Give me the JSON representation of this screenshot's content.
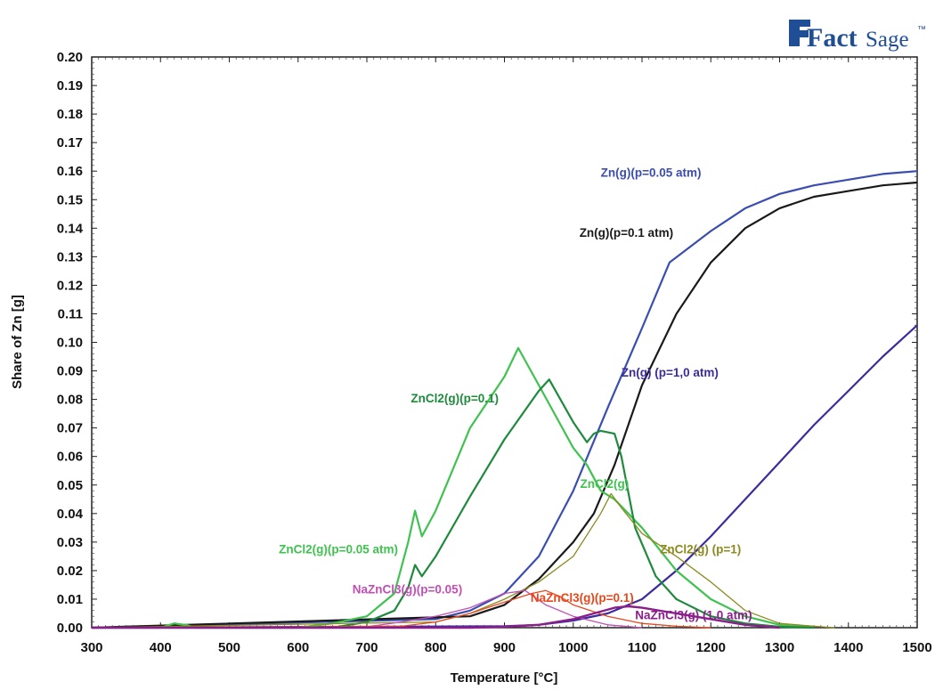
{
  "logo": {
    "brand": "FactSage",
    "bold_part": "Fact",
    "light_part": "Sage",
    "mark": "™",
    "color": "#1f4e96"
  },
  "chart_data": {
    "type": "line",
    "title": "",
    "xlabel": "Temperature [°C]",
    "ylabel": "Share of Zn [g]",
    "xlim": [
      300,
      1500
    ],
    "ylim": [
      0,
      0.2
    ],
    "xticks": [
      "300",
      "400",
      "500",
      "600",
      "700",
      "800",
      "900",
      "1000",
      "1100",
      "1200",
      "1300",
      "1400",
      "1500"
    ],
    "yticks": [
      "0.00",
      "0.01",
      "0.02",
      "0.03",
      "0.04",
      "0.05",
      "0.06",
      "0.07",
      "0.08",
      "0.09",
      "0.10",
      "0.11",
      "0.12",
      "0.13",
      "0.14",
      "0.15",
      "0.16",
      "0.17",
      "0.18",
      "0.19",
      "0.20"
    ],
    "grid": false,
    "series": [
      {
        "name": "Zn(g)(p=0.05 atm)",
        "color": "#3a4db0",
        "x": [
          300,
          800,
          850,
          900,
          950,
          1000,
          1050,
          1100,
          1140,
          1200,
          1250,
          1300,
          1350,
          1400,
          1450,
          1500
        ],
        "y": [
          0,
          0.003,
          0.006,
          0.012,
          0.025,
          0.048,
          0.077,
          0.105,
          0.128,
          0.139,
          0.147,
          0.152,
          0.155,
          0.157,
          0.159,
          0.16
        ]
      },
      {
        "name": "Zn(g)(p=0.1 atm)",
        "color": "#1a1a1a",
        "x": [
          300,
          850,
          900,
          950,
          1000,
          1030,
          1060,
          1100,
          1150,
          1200,
          1250,
          1300,
          1350,
          1400,
          1450,
          1500
        ],
        "y": [
          0,
          0.004,
          0.008,
          0.017,
          0.03,
          0.04,
          0.057,
          0.085,
          0.11,
          0.128,
          0.14,
          0.147,
          0.151,
          0.153,
          0.155,
          0.156
        ]
      },
      {
        "name": "Zn(g) (p=1,0 atm)",
        "color": "#3b2c9e",
        "x": [
          300,
          900,
          950,
          1000,
          1050,
          1100,
          1150,
          1200,
          1250,
          1300,
          1350,
          1400,
          1450,
          1500
        ],
        "y": [
          0,
          0.0005,
          0.001,
          0.0025,
          0.005,
          0.01,
          0.02,
          0.032,
          0.045,
          0.058,
          0.071,
          0.083,
          0.095,
          0.106
        ]
      },
      {
        "name": "ZnCl2(g)(p=0.05 atm)",
        "color": "#3fc24f",
        "x": [
          300,
          400,
          420,
          440,
          450,
          600,
          650,
          700,
          720,
          740,
          760,
          770,
          780,
          800,
          850,
          900,
          920,
          950,
          1000,
          1020,
          1040,
          1060,
          1100,
          1150,
          1200,
          1250,
          1300,
          1350
        ],
        "y": [
          0,
          0,
          0.0015,
          0.0008,
          0,
          0,
          0.0015,
          0.004,
          0.008,
          0.012,
          0.03,
          0.041,
          0.032,
          0.041,
          0.07,
          0.088,
          0.098,
          0.085,
          0.063,
          0.057,
          0.048,
          0.045,
          0.035,
          0.02,
          0.01,
          0.004,
          0.001,
          0
        ]
      },
      {
        "name": "ZnCl2(g)(p=0.1)",
        "color": "#1e8a3c",
        "x": [
          300,
          650,
          700,
          740,
          760,
          770,
          780,
          800,
          850,
          900,
          950,
          965,
          1000,
          1020,
          1030,
          1040,
          1060,
          1070,
          1090,
          1120,
          1150,
          1200,
          1250,
          1300,
          1350
        ],
        "y": [
          0,
          0,
          0.002,
          0.006,
          0.014,
          0.022,
          0.018,
          0.025,
          0.046,
          0.066,
          0.083,
          0.087,
          0.072,
          0.065,
          0.068,
          0.069,
          0.068,
          0.06,
          0.035,
          0.018,
          0.01,
          0.004,
          0.0015,
          0.0003,
          0
        ]
      },
      {
        "name": "ZnCl2(g) (p=1)",
        "color": "#8c8a1e",
        "x": [
          300,
          800,
          850,
          900,
          950,
          1000,
          1040,
          1055,
          1070,
          1100,
          1150,
          1200,
          1250,
          1300,
          1350,
          1380
        ],
        "y": [
          0,
          0.002,
          0.005,
          0.01,
          0.016,
          0.025,
          0.04,
          0.047,
          0.042,
          0.033,
          0.025,
          0.016,
          0.006,
          0.0015,
          0.0005,
          0
        ]
      },
      {
        "name": "NaZnCl3(g)(p=0.05)",
        "color": "#c24fb5",
        "x": [
          300,
          700,
          750,
          800,
          850,
          900,
          930,
          960,
          1000,
          1050,
          1100
        ],
        "y": [
          0,
          0.0003,
          0.002,
          0.004,
          0.007,
          0.012,
          0.013,
          0.008,
          0.004,
          0.001,
          0
        ]
      },
      {
        "name": "NaZnCl3(g)(p=0.1)",
        "color": "#e8471c",
        "x": [
          300,
          750,
          800,
          850,
          900,
          940,
          960,
          980,
          1000,
          1050,
          1100,
          1150,
          1200
        ],
        "y": [
          0,
          0.0005,
          0.002,
          0.005,
          0.009,
          0.012,
          0.013,
          0.011,
          0.008,
          0.004,
          0.0015,
          0.0005,
          0
        ]
      },
      {
        "name": "NaZnCl3(g) (1.0 atm)",
        "color": "#8a1e8a",
        "x": [
          300,
          850,
          900,
          950,
          1000,
          1030,
          1060,
          1080,
          1100,
          1150,
          1200,
          1250,
          1300
        ],
        "y": [
          0,
          0,
          0.0003,
          0.001,
          0.003,
          0.005,
          0.007,
          0.0075,
          0.007,
          0.005,
          0.003,
          0.001,
          0
        ]
      }
    ],
    "annotations": [
      {
        "text": "Zn(g)(p=0.05 atm)",
        "color": "#3a4db0",
        "x": 1040,
        "y": 0.158
      },
      {
        "text": "Zn(g)(p=0.1 atm)",
        "color": "#1a1a1a",
        "x": 1009,
        "y": 0.137
      },
      {
        "text": "Zn(g) (p=1,0 atm)",
        "color": "#3b2c9e",
        "x": 1070,
        "y": 0.088
      },
      {
        "text": "ZnCl2(g)(p=0.1)",
        "color": "#1e8a3c",
        "x": 764,
        "y": 0.079
      },
      {
        "text": "ZnCl2(g)",
        "color": "#3fc24f",
        "x": 1010,
        "y": 0.049
      },
      {
        "text": "ZnCl2(g)(p=0.05 atm)",
        "color": "#3fc24f",
        "x": 572,
        "y": 0.026
      },
      {
        "text": "ZnCl2(g) (p=1)",
        "color": "#8c8a1e",
        "x": 1126,
        "y": 0.026
      },
      {
        "text": "NaZnCl3(g)(p=0.05)",
        "color": "#c24fb5",
        "x": 679,
        "y": 0.012
      },
      {
        "text": "NaZnCl3(g)(p=0.1)",
        "color": "#e8471c",
        "x": 938,
        "y": 0.009
      },
      {
        "text": "NaZnCl3(g) (1.0 atm)",
        "color": "#8a1e8a",
        "x": 1090,
        "y": 0.003
      }
    ]
  }
}
